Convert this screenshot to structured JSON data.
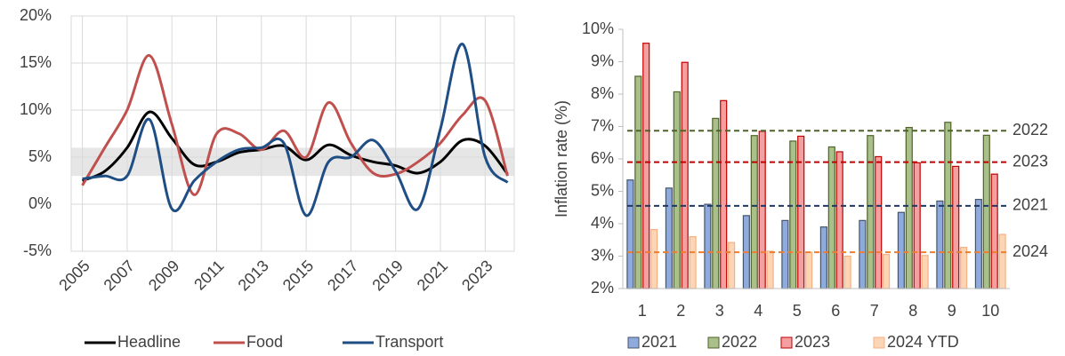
{
  "chart_data": [
    {
      "type": "line",
      "x": [
        2005,
        2006,
        2007,
        2008,
        2009,
        2010,
        2011,
        2012,
        2013,
        2014,
        2015,
        2016,
        2017,
        2018,
        2019,
        2020,
        2021,
        2022,
        2023,
        2024
      ],
      "series": [
        {
          "name": "Headline",
          "color": "#000000",
          "values": [
            2.5,
            3.5,
            6,
            9.8,
            7,
            4.2,
            4.5,
            5.5,
            5.8,
            6.2,
            4.7,
            6.3,
            5.2,
            4.5,
            4.1,
            3.3,
            4.5,
            6.8,
            6.2,
            3.2
          ]
        },
        {
          "name": "Food",
          "color": "#c0504d",
          "values": [
            2,
            6,
            10,
            15.8,
            8.5,
            1,
            7.5,
            7.5,
            5.8,
            7.8,
            5,
            10.8,
            6.5,
            3.3,
            3.2,
            4.5,
            6.5,
            9.5,
            11,
            3
          ]
        },
        {
          "name": "Transport",
          "color": "#1f4e85",
          "values": [
            2.7,
            3,
            3,
            9,
            -0.5,
            2.5,
            4.5,
            5.8,
            6,
            6.5,
            -1.2,
            4.5,
            5,
            6.8,
            3.5,
            -0.5,
            8,
            17,
            5,
            2.3
          ]
        }
      ],
      "xlim": [
        2004.5,
        2024.3
      ],
      "xticks": [
        2005,
        2007,
        2009,
        2011,
        2013,
        2015,
        2017,
        2019,
        2021,
        2023
      ],
      "ylim": [
        -5,
        20
      ],
      "yticks": [
        {
          "value": -5,
          "label": "-5%"
        },
        {
          "value": 0,
          "label": "0%"
        },
        {
          "value": 5,
          "label": "5%"
        },
        {
          "value": 10,
          "label": "10%"
        },
        {
          "value": 15,
          "label": "15%"
        },
        {
          "value": 20,
          "label": "20%"
        }
      ],
      "grid": true,
      "shaded_band": [
        3,
        6
      ],
      "legend": "bottom"
    },
    {
      "type": "bar",
      "y_label": "Inflation rate (%)",
      "categories": [
        "1",
        "2",
        "3",
        "4",
        "5",
        "6",
        "7",
        "8",
        "9",
        "10"
      ],
      "series": [
        {
          "name": "2021",
          "color": "#8faadc",
          "edge": "#44546a",
          "values": [
            5.35,
            5.1,
            4.6,
            4.25,
            4.1,
            3.9,
            4.1,
            4.35,
            4.7,
            4.75
          ]
        },
        {
          "name": "2022",
          "color": "#a9c08a",
          "edge": "#4f6228",
          "values": [
            8.55,
            8.07,
            7.25,
            6.72,
            6.55,
            6.37,
            6.72,
            6.97,
            7.13,
            6.73
          ]
        },
        {
          "name": "2023",
          "color": "#f4a0a0",
          "edge": "#c00000",
          "values": [
            9.57,
            8.98,
            7.8,
            6.85,
            6.7,
            6.22,
            6.07,
            5.88,
            5.77,
            5.53
          ]
        },
        {
          "name": "2024 YTD",
          "color": "#fcd5b5",
          "edge": "#f4b183",
          "values": [
            3.82,
            3.6,
            3.42,
            3.15,
            3.12,
            3.0,
            3.05,
            3.02,
            3.27,
            3.67
          ]
        }
      ],
      "reference_lines": [
        {
          "label": "2022",
          "value": 6.87,
          "color": "#4f6228"
        },
        {
          "label": "2023",
          "value": 5.9,
          "color": "#c00000"
        },
        {
          "label": "2021",
          "value": 4.55,
          "color": "#1f3864"
        },
        {
          "label": "2024",
          "value": 3.12,
          "color": "#ed7d31"
        }
      ],
      "ylim": [
        2,
        10
      ],
      "yticks": [
        {
          "value": 2,
          "label": "2%"
        },
        {
          "value": 3,
          "label": "3%"
        },
        {
          "value": 4,
          "label": "4%"
        },
        {
          "value": 5,
          "label": "5%"
        },
        {
          "value": 6,
          "label": "6%"
        },
        {
          "value": 7,
          "label": "7%"
        },
        {
          "value": 8,
          "label": "8%"
        },
        {
          "value": 9,
          "label": "9%"
        },
        {
          "value": 10,
          "label": "10%"
        }
      ],
      "grid": false,
      "legend": "bottom"
    }
  ]
}
